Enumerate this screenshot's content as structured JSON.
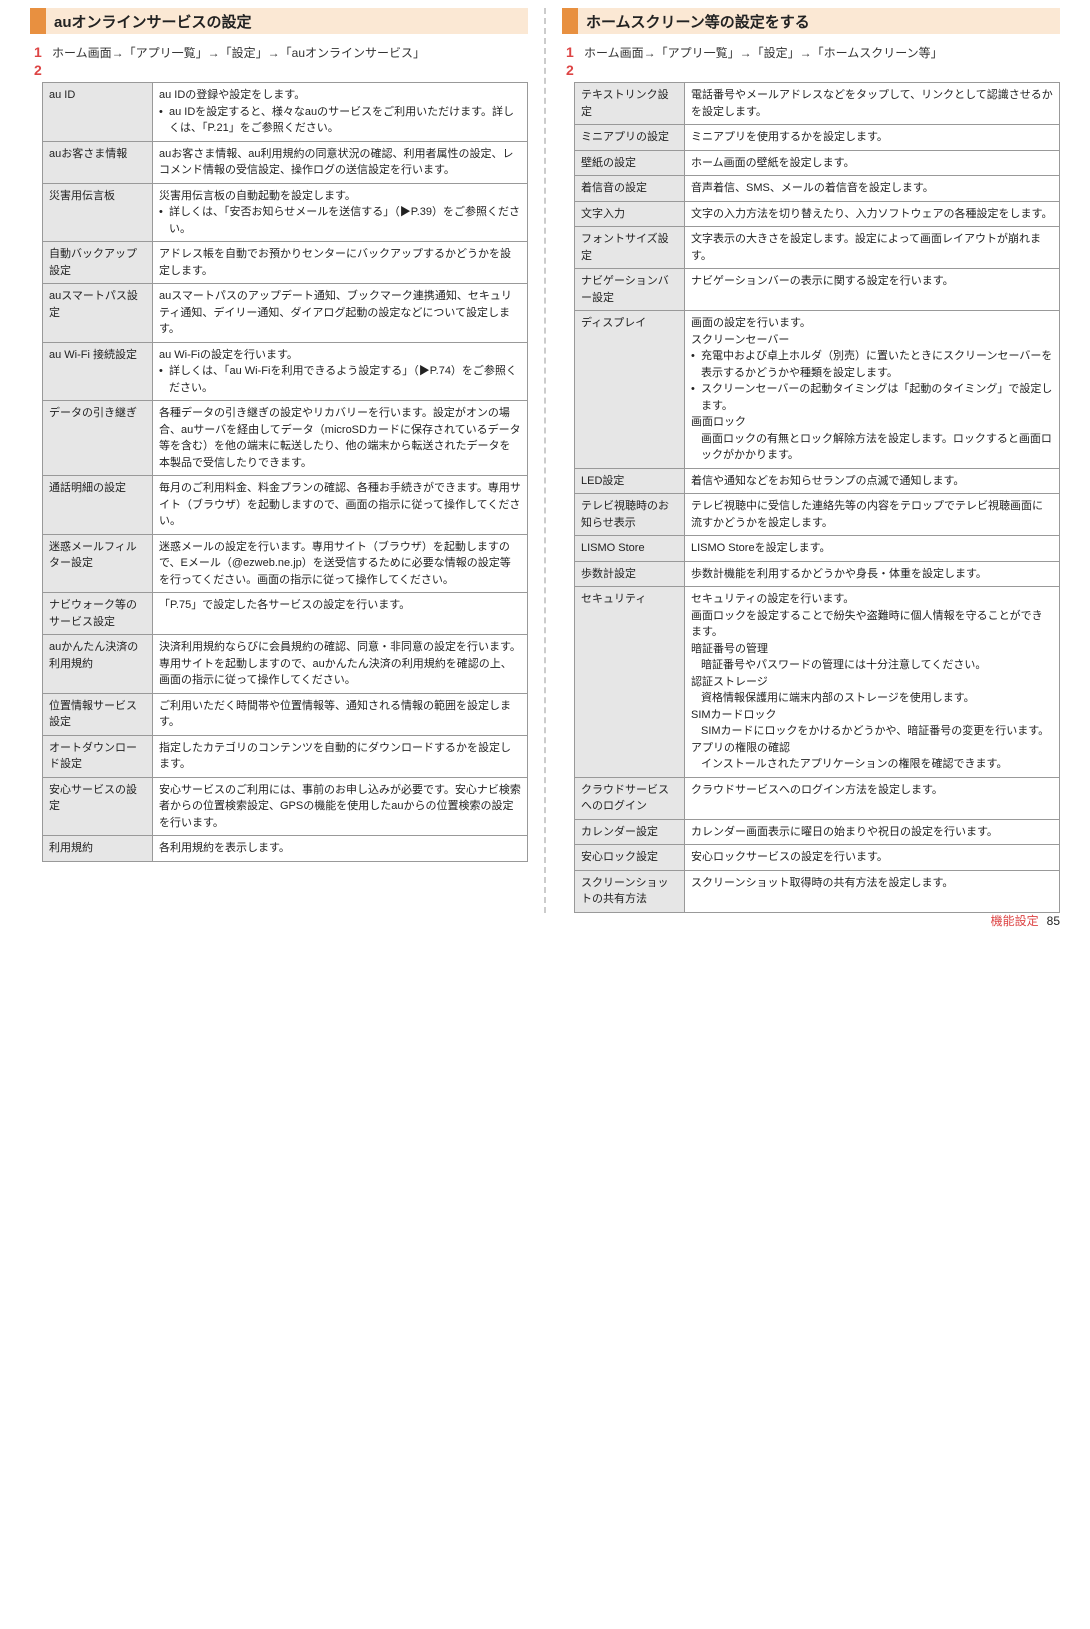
{
  "page_number": "85",
  "footer_label": "機能設定",
  "colors": {
    "header_accent": "#e89040",
    "header_band": "#fbe8d4",
    "step_number": "#d44",
    "cell_border": "#999999",
    "label_bg": "#e6e6e6",
    "divider": "#cccccc"
  },
  "left": {
    "header": "auオンラインサービスの設定",
    "steps": {
      "s1": {
        "num": "1",
        "txt": "ホーム画面→「アプリ一覧」→「設定」→「auオンラインサービス」"
      },
      "s2": {
        "num": "2",
        "txt": ""
      }
    },
    "rows": [
      {
        "l": "au ID",
        "r": "au IDの登録や設定をします。",
        "bul": "au IDを設定すると、様々なauのサービスをご利用いただけます。詳しくは、「P.21」をご参照ください。"
      },
      {
        "l": "auお客さま情報",
        "r": "auお客さま情報、au利用規約の同意状況の確認、利用者属性の設定、レコメンド情報の受信設定、操作ログの送信設定を行います。"
      },
      {
        "l": "災害用伝言板",
        "r": "災害用伝言板の自動起動を設定します。",
        "bul": "詳しくは、「安否お知らせメールを送信する」（▶P.39）をご参照ください。"
      },
      {
        "l": "自動バックアップ設定",
        "r": "アドレス帳を自動でお預かりセンターにバックアップするかどうかを設定します。"
      },
      {
        "l": "auスマートパス設定",
        "r": "auスマートパスのアップデート通知、ブックマーク連携通知、セキュリティ通知、デイリー通知、ダイアログ起動の設定などについて設定します。"
      },
      {
        "l": "au Wi-Fi 接続設定",
        "r": "au Wi-Fiの設定を行います。",
        "bul": "詳しくは、「au Wi-Fiを利用できるよう設定する」（▶P.74）をご参照ください。"
      },
      {
        "l": "データの引き継ぎ",
        "r": "各種データの引き継ぎの設定やリカバリーを行います。設定がオンの場合、auサーバを経由してデータ（microSDカードに保存されているデータ等を含む）を他の端末に転送したり、他の端末から転送されたデータを本製品で受信したりできます。"
      },
      {
        "l": "通話明細の設定",
        "r": "毎月のご利用料金、料金プランの確認、各種お手続きができます。専用サイト（ブラウザ）を起動しますので、画面の指示に従って操作してください。"
      },
      {
        "l": "迷惑メールフィルター設定",
        "r": "迷惑メールの設定を行います。専用サイト（ブラウザ）を起動しますので、Eメール（@ezweb.ne.jp）を送受信するために必要な情報の設定等を行ってください。画面の指示に従って操作してください。"
      },
      {
        "l": "ナビウォーク等のサービス設定",
        "r": "「P.75」で設定した各サービスの設定を行います。"
      },
      {
        "l": "auかんたん決済の利用規約",
        "r": "決済利用規約ならびに会員規約の確認、同意・非同意の設定を行います。専用サイトを起動しますので、auかんたん決済の利用規約を確認の上、画面の指示に従って操作してください。"
      },
      {
        "l": "位置情報サービス設定",
        "r": "ご利用いただく時間帯や位置情報等、通知される情報の範囲を設定します。"
      },
      {
        "l": "オートダウンロード設定",
        "r": "指定したカテゴリのコンテンツを自動的にダウンロードするかを設定します。"
      },
      {
        "l": "安心サービスの設定",
        "r": "安心サービスのご利用には、事前のお申し込みが必要です。安心ナビ検索者からの位置検索設定、GPSの機能を使用したauからの位置検索の設定を行います。"
      },
      {
        "l": "利用規約",
        "r": "各利用規約を表示します。"
      }
    ]
  },
  "right": {
    "header": "ホームスクリーン等の設定をする",
    "steps": {
      "s1": {
        "num": "1",
        "txt": "ホーム画面→「アプリ一覧」→「設定」→「ホームスクリーン等」"
      },
      "s2": {
        "num": "2",
        "txt": ""
      }
    },
    "rows": [
      {
        "l": "テキストリンク設定",
        "r": "電話番号やメールアドレスなどをタップして、リンクとして認識させるかを設定します。"
      },
      {
        "l": "ミニアプリの設定",
        "r": "ミニアプリを使用するかを設定します。"
      },
      {
        "l": "壁紙の設定",
        "r": "ホーム画面の壁紙を設定します。"
      },
      {
        "l": "着信音の設定",
        "r": "音声着信、SMS、メールの着信音を設定します。"
      },
      {
        "l": "文字入力",
        "r": "文字の入力方法を切り替えたり、入力ソフトウェアの各種設定をします。"
      },
      {
        "l": "フォントサイズ設定",
        "r": "文字表示の大きさを設定します。設定によって画面レイアウトが崩れます。"
      },
      {
        "l": "ナビゲーションバー設定",
        "r": "ナビゲーションバーの表示に関する設定を行います。"
      },
      {
        "l": "ディスプレイ",
        "r": "画面の設定を行います。",
        "sub": [
          {
            "t": "スクリーンセーバー"
          },
          {
            "bul": "充電中および卓上ホルダ（別売）に置いたときにスクリーンセーバーを表示するかどうかや種類を設定します。"
          },
          {
            "bul": "スクリーンセーバーの起動タイミングは「起動のタイミング」で設定します。"
          },
          {
            "t": "画面ロック"
          },
          {
            "t2": "画面ロックの有無とロック解除方法を設定します。ロックすると画面ロックがかかります。"
          }
        ]
      },
      {
        "l": "LED設定",
        "r": "着信や通知などをお知らせランプの点滅で通知します。"
      },
      {
        "l": "テレビ視聴時のお知らせ表示",
        "r": "テレビ視聴中に受信した連絡先等の内容をテロップでテレビ視聴画面に流すかどうかを設定します。"
      },
      {
        "l": "LISMO Store",
        "r": "LISMO Storeを設定します。"
      },
      {
        "l": "歩数計設定",
        "r": "歩数計機能を利用するかどうかや身長・体重を設定します。"
      },
      {
        "l": "セキュリティ",
        "r": "セキュリティの設定を行います。",
        "sub": [
          {
            "t": "画面ロックを設定することで紛失や盗難時に個人情報を守ることができます。"
          },
          {
            "t": "暗証番号の管理"
          },
          {
            "t2": "暗証番号やパスワードの管理には十分注意してください。"
          },
          {
            "t": "認証ストレージ"
          },
          {
            "t2": "資格情報保護用に端末内部のストレージを使用します。"
          },
          {
            "t": "SIMカードロック"
          },
          {
            "t2": "SIMカードにロックをかけるかどうかや、暗証番号の変更を行います。"
          },
          {
            "t": "アプリの権限の確認"
          },
          {
            "t2": "インストールされたアプリケーションの権限を確認できます。"
          }
        ]
      },
      {
        "l": "クラウドサービスへのログイン",
        "r": "クラウドサービスへのログイン方法を設定します。"
      },
      {
        "l": "カレンダー設定",
        "r": "カレンダー画面表示に曜日の始まりや祝日の設定を行います。"
      },
      {
        "l": "安心ロック設定",
        "r": "安心ロックサービスの設定を行います。"
      },
      {
        "l": "スクリーンショットの共有方法",
        "r": "スクリーンショット取得時の共有方法を設定します。"
      }
    ]
  }
}
